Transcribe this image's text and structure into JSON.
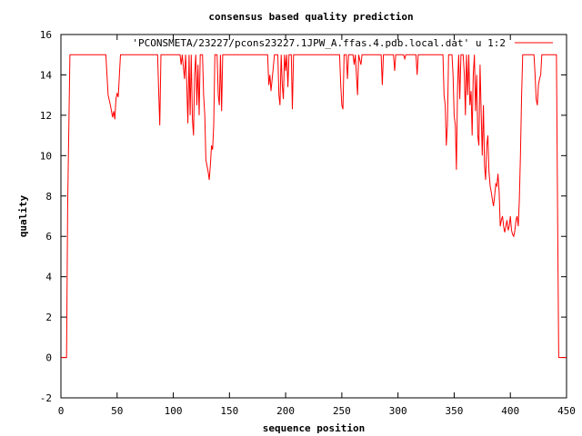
{
  "chart_data": {
    "type": "line",
    "title": "consensus based quality prediction",
    "xlabel": "sequence position",
    "ylabel": "quality",
    "xlim": [
      0,
      450
    ],
    "ylim": [
      -2,
      16
    ],
    "xticks": [
      0,
      50,
      100,
      150,
      200,
      250,
      300,
      350,
      400,
      450
    ],
    "yticks": [
      -2,
      0,
      2,
      4,
      6,
      8,
      10,
      12,
      14,
      16
    ],
    "grid": false,
    "legend_position": "top-right",
    "series": [
      {
        "name": "'PCONSMETA/23227/pcons23227.1JPW_A.ffas.4.pdb.local.dat' u 1:2",
        "color": "#ff0000",
        "points": [
          [
            0,
            0
          ],
          [
            5,
            0
          ],
          [
            6,
            7.5
          ],
          [
            8,
            15
          ],
          [
            40,
            15
          ],
          [
            42,
            13
          ],
          [
            44,
            12.5
          ],
          [
            46,
            11.9
          ],
          [
            47,
            12.2
          ],
          [
            48,
            11.8
          ],
          [
            49,
            12.8
          ],
          [
            50,
            13.1
          ],
          [
            51,
            12.9
          ],
          [
            53,
            15
          ],
          [
            86,
            15
          ],
          [
            87,
            13.2
          ],
          [
            88,
            11.5
          ],
          [
            89,
            15
          ],
          [
            106,
            15
          ],
          [
            107,
            14.5
          ],
          [
            108,
            15
          ],
          [
            110,
            13.8
          ],
          [
            111,
            15
          ],
          [
            112,
            13.5
          ],
          [
            113,
            11.6
          ],
          [
            114,
            15
          ],
          [
            115,
            12
          ],
          [
            116,
            15
          ],
          [
            117,
            11.8
          ],
          [
            118,
            11
          ],
          [
            119,
            14
          ],
          [
            120,
            15
          ],
          [
            121,
            12.5
          ],
          [
            122,
            14.5
          ],
          [
            123,
            12
          ],
          [
            124,
            15
          ],
          [
            126,
            15
          ],
          [
            127,
            13
          ],
          [
            128,
            12
          ],
          [
            129,
            9.8
          ],
          [
            130,
            9.5
          ],
          [
            131,
            9.2
          ],
          [
            132,
            8.8
          ],
          [
            133,
            9.5
          ],
          [
            134,
            10.5
          ],
          [
            135,
            10.3
          ],
          [
            136,
            11.5
          ],
          [
            137,
            15
          ],
          [
            139,
            15
          ],
          [
            140,
            13
          ],
          [
            141,
            12.5
          ],
          [
            142,
            15
          ],
          [
            143,
            12.2
          ],
          [
            144,
            15
          ],
          [
            184,
            15
          ],
          [
            185,
            13.5
          ],
          [
            186,
            14
          ],
          [
            187,
            13.2
          ],
          [
            188,
            13.8
          ],
          [
            190,
            15
          ],
          [
            193,
            15
          ],
          [
            194,
            13
          ],
          [
            195,
            12.5
          ],
          [
            196,
            15
          ],
          [
            197,
            13.5
          ],
          [
            198,
            12.8
          ],
          [
            199,
            15
          ],
          [
            200,
            14.2
          ],
          [
            201,
            15
          ],
          [
            202,
            13.4
          ],
          [
            203,
            15
          ],
          [
            205,
            15
          ],
          [
            206,
            12.3
          ],
          [
            207,
            15
          ],
          [
            248,
            15
          ],
          [
            249,
            13.5
          ],
          [
            250,
            12.5
          ],
          [
            251,
            12.3
          ],
          [
            252,
            15
          ],
          [
            254,
            15
          ],
          [
            255,
            13.8
          ],
          [
            256,
            15
          ],
          [
            260,
            15
          ],
          [
            261,
            14.5
          ],
          [
            262,
            15
          ],
          [
            264,
            13
          ],
          [
            265,
            15
          ],
          [
            267,
            14.5
          ],
          [
            268,
            15
          ],
          [
            285,
            15
          ],
          [
            286,
            13.5
          ],
          [
            287,
            15
          ],
          [
            296,
            15
          ],
          [
            297,
            14.2
          ],
          [
            298,
            15
          ],
          [
            305,
            15
          ],
          [
            306,
            14.8
          ],
          [
            307,
            15
          ],
          [
            316,
            15
          ],
          [
            317,
            14
          ],
          [
            318,
            15
          ],
          [
            340,
            15
          ],
          [
            341,
            13
          ],
          [
            342,
            12.5
          ],
          [
            343,
            10.5
          ],
          [
            344,
            11.5
          ],
          [
            345,
            15
          ],
          [
            348,
            15
          ],
          [
            349,
            14
          ],
          [
            350,
            12
          ],
          [
            351,
            11.5
          ],
          [
            352,
            9.3
          ],
          [
            353,
            13.5
          ],
          [
            354,
            15
          ],
          [
            355,
            12.8
          ],
          [
            356,
            15
          ],
          [
            358,
            15
          ],
          [
            359,
            14
          ],
          [
            360,
            12
          ],
          [
            361,
            15
          ],
          [
            362,
            13
          ],
          [
            363,
            15
          ],
          [
            364,
            12.5
          ],
          [
            365,
            13.2
          ],
          [
            366,
            11
          ],
          [
            367,
            14
          ],
          [
            368,
            15
          ],
          [
            369,
            12.2
          ],
          [
            370,
            14
          ],
          [
            371,
            11
          ],
          [
            372,
            10.5
          ],
          [
            373,
            14.5
          ],
          [
            374,
            12.2
          ],
          [
            375,
            10
          ],
          [
            376,
            12.5
          ],
          [
            377,
            9.5
          ],
          [
            378,
            8.8
          ],
          [
            379,
            10.5
          ],
          [
            380,
            11
          ],
          [
            381,
            9.2
          ],
          [
            382,
            8.5
          ],
          [
            383,
            8.2
          ],
          [
            384,
            7.8
          ],
          [
            385,
            7.5
          ],
          [
            386,
            8
          ],
          [
            387,
            8.6
          ],
          [
            388,
            8.5
          ],
          [
            389,
            9.1
          ],
          [
            390,
            8.2
          ],
          [
            391,
            6.5
          ],
          [
            392,
            6.8
          ],
          [
            393,
            7
          ],
          [
            394,
            6.5
          ],
          [
            395,
            6.2
          ],
          [
            396,
            6.5
          ],
          [
            397,
            6.8
          ],
          [
            398,
            6.3
          ],
          [
            399,
            6.5
          ],
          [
            400,
            7
          ],
          [
            401,
            6.3
          ],
          [
            402,
            6.1
          ],
          [
            403,
            6
          ],
          [
            404,
            6.3
          ],
          [
            405,
            6.8
          ],
          [
            406,
            7
          ],
          [
            407,
            6.5
          ],
          [
            408,
            7.8
          ],
          [
            409,
            10
          ],
          [
            410,
            13
          ],
          [
            411,
            15
          ],
          [
            421,
            15
          ],
          [
            422,
            14
          ],
          [
            423,
            12.8
          ],
          [
            424,
            12.5
          ],
          [
            425,
            13.5
          ],
          [
            426,
            13.8
          ],
          [
            427,
            14
          ],
          [
            428,
            15
          ],
          [
            441,
            15
          ],
          [
            442,
            7.5
          ],
          [
            443,
            0
          ],
          [
            450,
            0
          ]
        ]
      }
    ]
  }
}
